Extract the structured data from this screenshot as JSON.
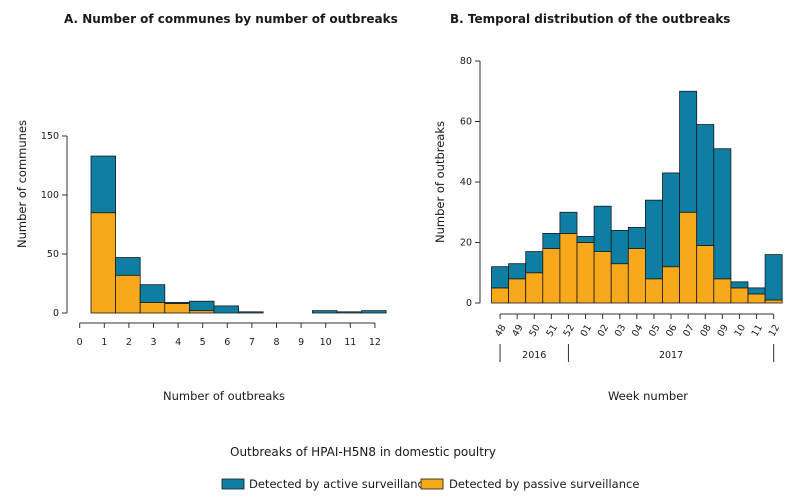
{
  "colors": {
    "active": "#0e7fa3",
    "passive": "#f7a81b",
    "edge": "#1a1a1a",
    "axis": "#333333"
  },
  "legend": {
    "title": "Outbreaks of HPAI-H5N8 in domestic poultry",
    "items": [
      {
        "key": "active",
        "label": "Detected by active surveillance"
      },
      {
        "key": "passive",
        "label": "Detected by passive surveillance"
      }
    ]
  },
  "chart_data": [
    {
      "type": "bar",
      "stacked": true,
      "title": "A. Number of communes by number of outbreaks",
      "xlabel": "Number of outbreaks",
      "ylabel": "Number of communes",
      "categories": [
        "1",
        "2",
        "3",
        "4",
        "5",
        "6",
        "7",
        "8",
        "9",
        "10",
        "11",
        "12"
      ],
      "xticks": [
        "0",
        "1",
        "2",
        "3",
        "4",
        "5",
        "6",
        "7",
        "8",
        "9",
        "10",
        "11",
        "12"
      ],
      "yticks": [
        0,
        50,
        100,
        150
      ],
      "ylim": [
        0,
        150
      ],
      "series": [
        {
          "name": "Detected by passive surveillance",
          "key": "passive",
          "values": [
            85,
            32,
            9,
            8,
            2,
            0,
            0,
            0,
            0,
            0,
            0,
            0
          ]
        },
        {
          "name": "Detected by active surveillance",
          "key": "active",
          "values": [
            48,
            15,
            15,
            1,
            8,
            6,
            1,
            0,
            0,
            2,
            1,
            2
          ]
        }
      ],
      "totals": [
        133,
        47,
        24,
        9,
        10,
        6,
        1,
        0,
        0,
        2,
        1,
        2
      ]
    },
    {
      "type": "bar",
      "stacked": true,
      "title": "B. Temporal distribution of the outbreaks",
      "xlabel": "Week number",
      "ylabel": "Number of outbreaks",
      "categories": [
        "48",
        "49",
        "50",
        "51",
        "52",
        "01",
        "02",
        "03",
        "04",
        "05",
        "06",
        "07",
        "08",
        "09",
        "10",
        "11",
        "12"
      ],
      "year_groups": [
        {
          "label": "2016",
          "span": 5
        },
        {
          "label": "2017",
          "span": 12
        }
      ],
      "yticks": [
        0,
        20,
        40,
        60,
        80
      ],
      "ylim": [
        0,
        80
      ],
      "series": [
        {
          "name": "Detected by passive surveillance",
          "key": "passive",
          "values": [
            5,
            8,
            10,
            18,
            23,
            20,
            17,
            13,
            18,
            8,
            12,
            30,
            19,
            8,
            5,
            3,
            1
          ]
        },
        {
          "name": "Detected by active surveillance",
          "key": "active",
          "values": [
            7,
            5,
            7,
            5,
            7,
            2,
            15,
            11,
            7,
            26,
            31,
            40,
            40,
            43,
            2,
            2,
            15
          ]
        }
      ],
      "totals": [
        12,
        13,
        17,
        23,
        30,
        22,
        32,
        24,
        25,
        34,
        43,
        70,
        59,
        51,
        7,
        5,
        16
      ]
    }
  ]
}
